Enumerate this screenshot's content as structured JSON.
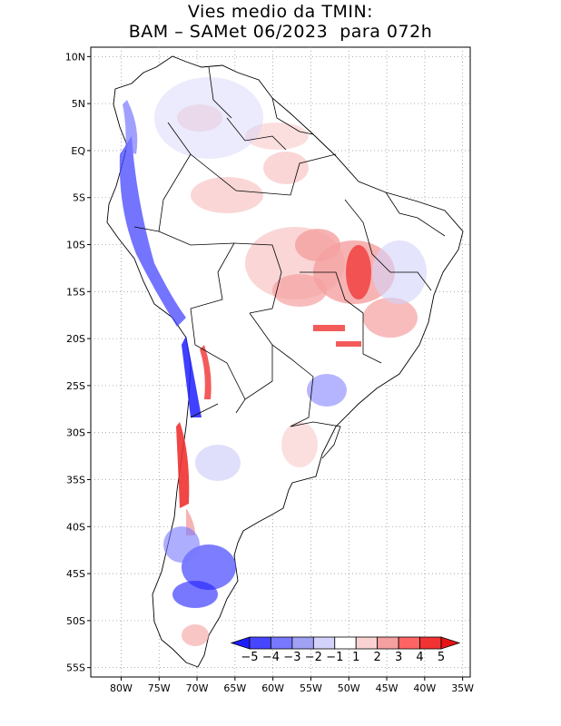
{
  "title": {
    "line1": "Vies medio da TMIN:",
    "line2": "BAM – SAMet 06/2023  para 072h"
  },
  "map": {
    "projection": "latlon",
    "lon_range": [
      -84,
      -34
    ],
    "lat_range": [
      -56,
      11
    ],
    "lat_ticks": [
      {
        "value": 10,
        "label": "10N"
      },
      {
        "value": 5,
        "label": "5N"
      },
      {
        "value": 0,
        "label": "EQ"
      },
      {
        "value": -5,
        "label": "5S"
      },
      {
        "value": -10,
        "label": "10S"
      },
      {
        "value": -15,
        "label": "15S"
      },
      {
        "value": -20,
        "label": "20S"
      },
      {
        "value": -25,
        "label": "25S"
      },
      {
        "value": -30,
        "label": "30S"
      },
      {
        "value": -35,
        "label": "35S"
      },
      {
        "value": -40,
        "label": "40S"
      },
      {
        "value": -45,
        "label": "45S"
      },
      {
        "value": -50,
        "label": "50S"
      },
      {
        "value": -55,
        "label": "55S"
      }
    ],
    "lon_ticks": [
      {
        "value": -80,
        "label": "80W"
      },
      {
        "value": -75,
        "label": "75W"
      },
      {
        "value": -70,
        "label": "70W"
      },
      {
        "value": -65,
        "label": "65W"
      },
      {
        "value": -60,
        "label": "60W"
      },
      {
        "value": -55,
        "label": "55W"
      },
      {
        "value": -50,
        "label": "50W"
      },
      {
        "value": -45,
        "label": "45W"
      },
      {
        "value": -40,
        "label": "40W"
      },
      {
        "value": -35,
        "label": "35W"
      }
    ],
    "grid": "dotted"
  },
  "colorbar": {
    "labels": [
      "−5",
      "−4",
      "−3",
      "−2",
      "−1",
      "1",
      "2",
      "3",
      "4",
      "5"
    ],
    "colors": [
      "#1e1eff",
      "#4646ff",
      "#7878ff",
      "#a0a0f5",
      "#d2d2fa",
      "#ffffff",
      "#fad2d2",
      "#f5a0a0",
      "#ff6464",
      "#f03232",
      "#e61414"
    ],
    "orientation": "horizontal",
    "placement": "bottom-right inside map"
  },
  "colors": {
    "strong_warm": "#f03232",
    "warm": "#f5a0a0",
    "light_warm": "#fad2d2",
    "light_cool": "#d2d2fa",
    "cool": "#7878ff",
    "strong_cool": "#1e1eff",
    "border": "#000000"
  }
}
